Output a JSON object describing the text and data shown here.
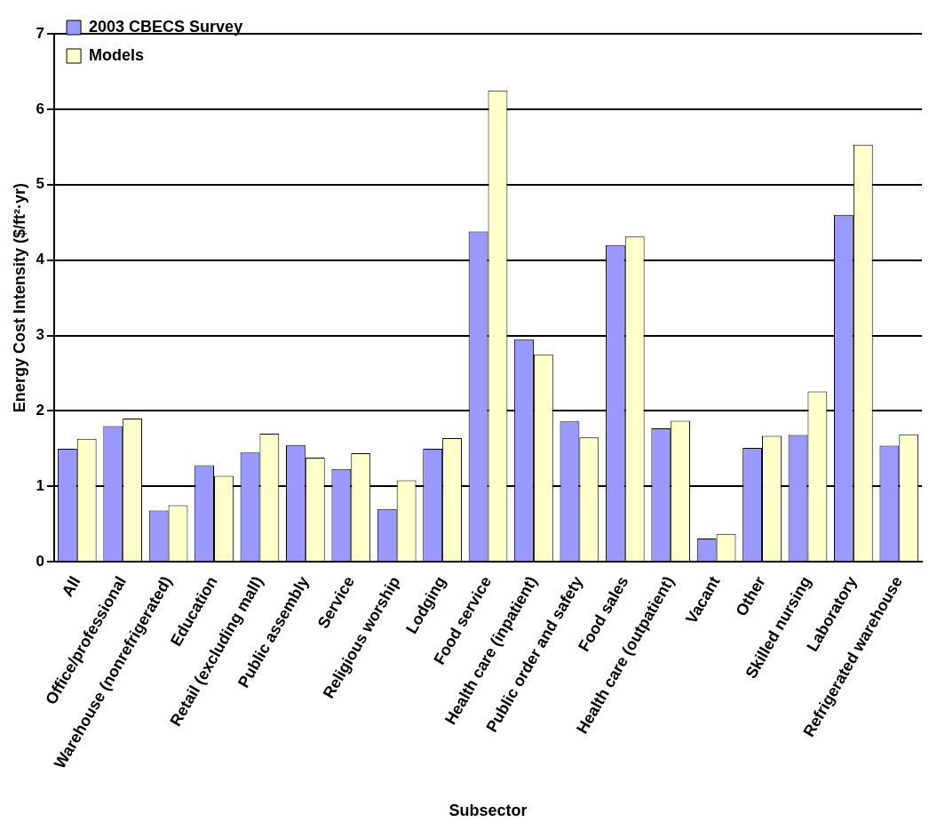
{
  "chart_data": {
    "type": "bar",
    "xlabel": "Subsector",
    "ylabel": "Energy Cost Intensity ($/ft²·yr)",
    "categories": [
      "All",
      "Office/professional",
      "Warehouse (nonrefrigerated)",
      "Education",
      "Retail (excluding mall)",
      "Public assembly",
      "Service",
      "Religious worship",
      "Lodging",
      "Food service",
      "Health care (inpatient)",
      "Public order and safety",
      "Food sales",
      "Health care (outpatient)",
      "Vacant",
      "Other",
      "Skilled nursing",
      "Laboratory",
      "Refrigerated warehouse"
    ],
    "series": [
      {
        "name": "2003 CBECS Survey",
        "color": "#9999ff",
        "values": [
          1.5,
          1.8,
          0.68,
          1.28,
          1.45,
          1.55,
          1.23,
          0.7,
          1.5,
          4.38,
          2.95,
          1.86,
          4.2,
          1.77,
          0.31,
          1.51,
          1.68,
          4.6,
          1.54
        ]
      },
      {
        "name": "Models",
        "color": "#ffffcc",
        "values": [
          1.63,
          1.9,
          0.75,
          1.14,
          1.7,
          1.38,
          1.44,
          1.08,
          1.64,
          6.25,
          2.75,
          1.65,
          4.31,
          1.87,
          0.37,
          1.67,
          2.26,
          5.53,
          1.69
        ]
      }
    ],
    "ylim": [
      0,
      7
    ],
    "yticks": [
      0,
      1,
      2,
      3,
      4,
      5,
      6,
      7
    ],
    "grid": "y",
    "legend": "top left"
  }
}
